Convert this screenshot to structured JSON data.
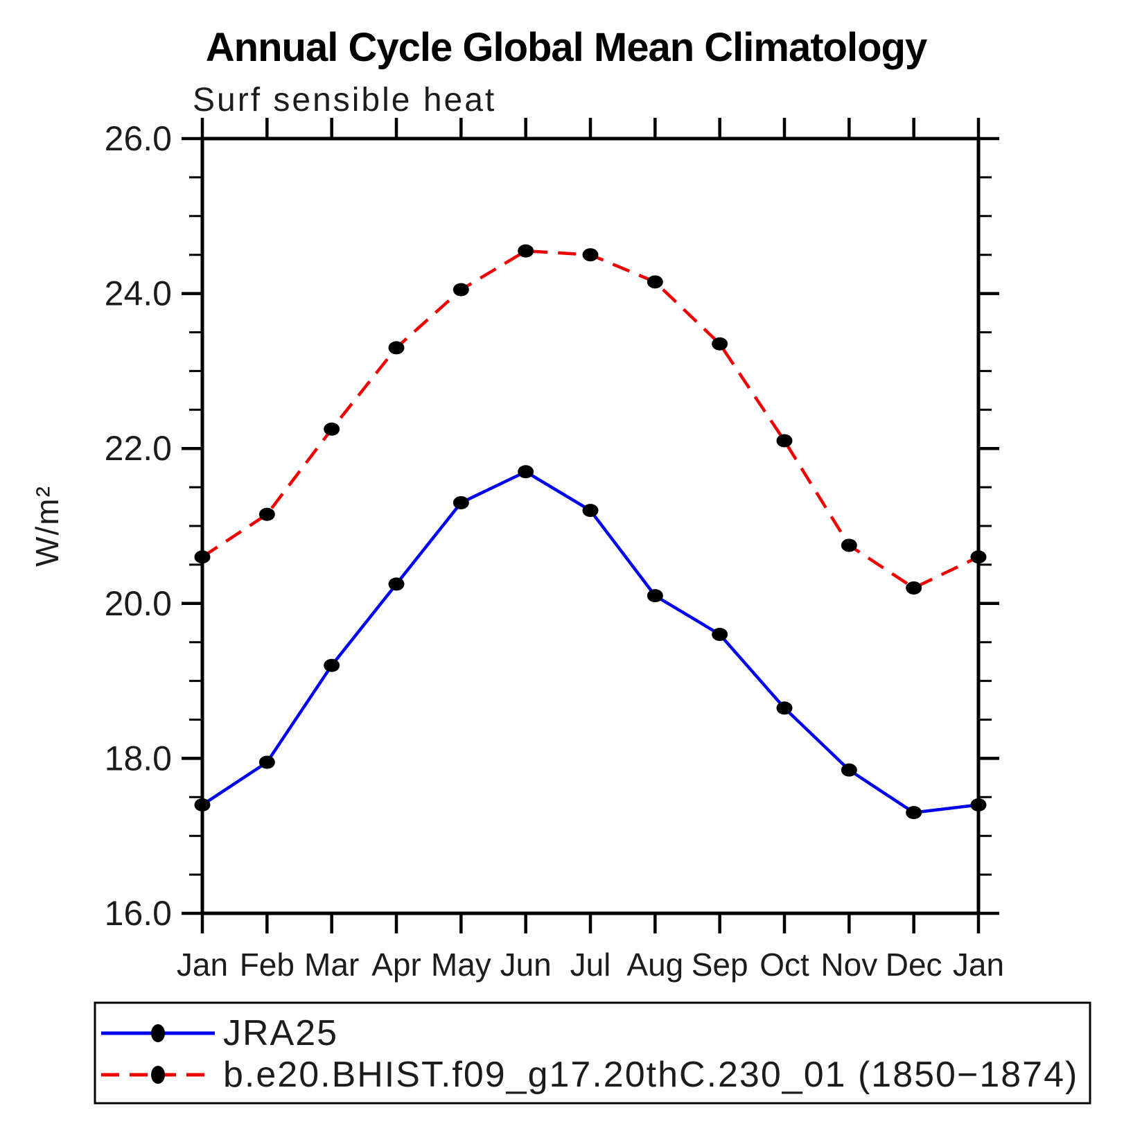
{
  "title": "Annual Cycle Global Mean Climatology",
  "subtitle": "Surf sensible heat",
  "chart_data": {
    "type": "line",
    "categories": [
      "Jan",
      "Feb",
      "Mar",
      "Apr",
      "May",
      "Jun",
      "Jul",
      "Aug",
      "Sep",
      "Oct",
      "Nov",
      "Dec",
      "Jan"
    ],
    "series": [
      {
        "name": "JRA25",
        "color": "#0000EE",
        "line_style": "solid",
        "marker": "filled-circle",
        "marker_color": "#000000",
        "values": [
          17.4,
          17.95,
          19.2,
          20.25,
          21.3,
          21.7,
          21.2,
          20.1,
          19.6,
          18.65,
          17.85,
          17.3,
          17.4
        ]
      },
      {
        "name": "b.e20.BHIST.f09_g17.20thC.230_01 (1850−1874)",
        "color": "#EE0000",
        "line_style": "dashed",
        "marker": "filled-circle",
        "marker_color": "#000000",
        "values": [
          20.6,
          21.15,
          22.25,
          23.3,
          24.05,
          24.55,
          24.5,
          24.15,
          23.35,
          22.1,
          20.75,
          20.2,
          20.6
        ]
      }
    ],
    "xlabel": "",
    "ylabel": "W/m²",
    "ylim": [
      16.0,
      26.0
    ],
    "ytick_major_values": [
      26.0,
      24.0,
      22.0,
      20.0,
      18.0,
      16.0
    ],
    "ytick_major_labels": [
      "26.0",
      "24.0",
      "22.0",
      "20.0",
      "18.0",
      "16.0"
    ],
    "ytick_minor_step": 0.5,
    "grid": false,
    "frame_color": "#000000",
    "legend_position": "bottom-left-box"
  }
}
